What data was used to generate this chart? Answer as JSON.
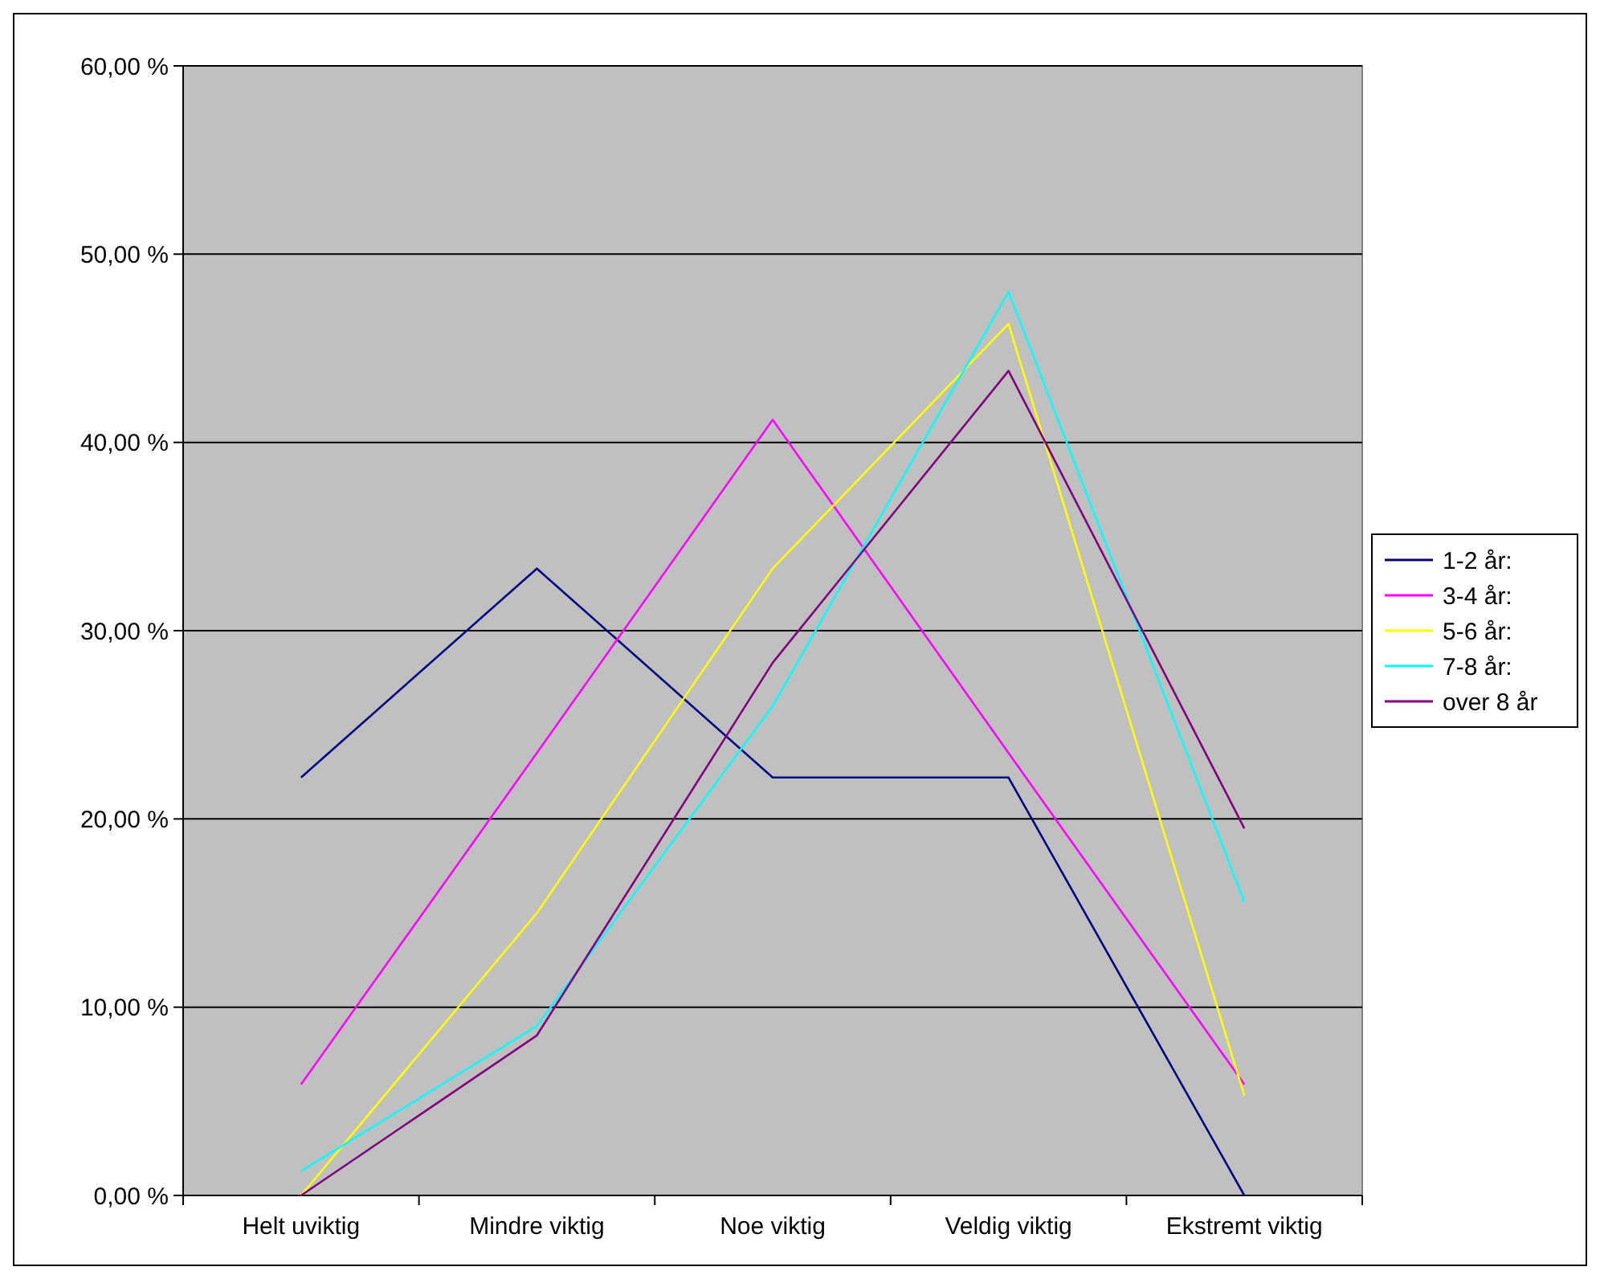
{
  "chart_data": {
    "type": "line",
    "categories": [
      "Helt uviktig",
      "Mindre viktig",
      "Noe viktig",
      "Veldig viktig",
      "Ekstremt viktig"
    ],
    "series": [
      {
        "name": "1-2 år:",
        "color": "#000080",
        "values": [
          22.2,
          33.3,
          22.2,
          22.2,
          0
        ]
      },
      {
        "name": "3-4 år:",
        "color": "#ff00ff",
        "values": [
          5.9,
          23.5,
          41.2,
          23.5,
          5.9
        ]
      },
      {
        "name": "5-6 år:",
        "color": "#ffff00",
        "values": [
          0,
          15,
          33.3,
          46.3,
          5.3
        ]
      },
      {
        "name": "7-8 år:",
        "color": "#00ffff",
        "values": [
          1.3,
          9,
          26,
          48,
          15.6
        ]
      },
      {
        "name": "over 8 år",
        "color": "#800080",
        "values": [
          0,
          8.5,
          28.3,
          43.8,
          19.5
        ]
      }
    ],
    "ylim": [
      0,
      60
    ],
    "yticks": [
      {
        "value": 0,
        "label": "0,00 %"
      },
      {
        "value": 10,
        "label": "10,00 %"
      },
      {
        "value": 20,
        "label": "20,00 %"
      },
      {
        "value": 30,
        "label": "30,00 %"
      },
      {
        "value": 40,
        "label": "40,00 %"
      },
      {
        "value": 50,
        "label": "50,00 %"
      },
      {
        "value": 60,
        "label": "60,00 %"
      }
    ],
    "grid": "y",
    "legend": "right",
    "marker": "none",
    "line_style": "solid"
  }
}
